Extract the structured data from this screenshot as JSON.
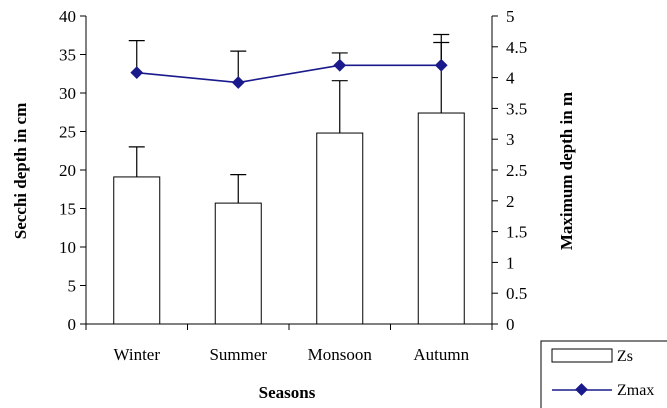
{
  "chart_data": {
    "type": "bar",
    "categories": [
      "Winter",
      "Summer",
      "Monsoon",
      "Autumn"
    ],
    "xlabel": "Seasons",
    "ylabel": "Secchi depth in cm",
    "y2label": "Maximum depth in m",
    "ylim": [
      0,
      40
    ],
    "y2lim": [
      0,
      5
    ],
    "yticks": [
      "0",
      "5",
      "10",
      "15",
      "20",
      "25",
      "30",
      "35",
      "40"
    ],
    "y2ticks": [
      "0",
      "0.5",
      "1",
      "1.5",
      "2",
      "2.5",
      "3",
      "3.5",
      "4",
      "4.5",
      "5"
    ],
    "grid": false,
    "legend_position": "bottom-right",
    "series": [
      {
        "name": "Zs",
        "type": "bar",
        "axis": "left",
        "values": [
          19.1,
          15.7,
          24.8,
          27.4
        ],
        "error_upper": [
          23.0,
          19.4,
          31.6,
          37.6
        ],
        "fill": "#ffffff",
        "stroke": "#000000"
      },
      {
        "name": "Zmax",
        "type": "line",
        "axis": "right",
        "values": [
          4.08,
          3.92,
          4.2,
          4.2
        ],
        "error_upper": [
          4.6,
          4.43,
          4.4,
          4.57
        ],
        "color": "#1a1a8c",
        "marker": "diamond"
      }
    ]
  }
}
